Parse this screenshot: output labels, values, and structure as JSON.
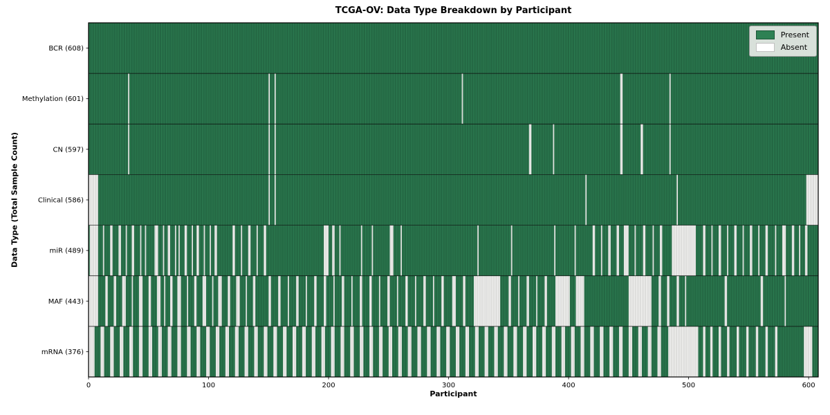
{
  "chart_data": {
    "type": "heatmap",
    "title": "TCGA-OV: Data Type Breakdown by Participant",
    "xlabel": "Participant",
    "ylabel": "Data Type (Total Sample Count)",
    "n_participants": 608,
    "x_ticks": [
      0,
      100,
      200,
      300,
      400,
      500,
      600
    ],
    "grid": "row-separators-only",
    "legend": {
      "position": "upper right",
      "present": "Present",
      "absent": "Absent"
    },
    "colors": {
      "present": "#2e8154",
      "present_alt": "#28724a",
      "present_edge": "#1c5638",
      "absent": "#fbfbfa",
      "absent_alt": "#ececea",
      "absent_edge": "#c4c4c2",
      "background": "#ffffff",
      "axis": "#000000"
    },
    "rows": [
      {
        "name": "BCR",
        "label": "BCR (608)",
        "present_count": 608,
        "absent_count": 0,
        "absent_ranges": []
      },
      {
        "name": "Methylation",
        "label": "Methylation (601)",
        "present_count": 601,
        "absent_count": 7,
        "absent_ranges": [
          [
            33,
            33
          ],
          [
            150,
            150
          ],
          [
            155,
            155
          ],
          [
            311,
            311
          ],
          [
            443,
            444
          ],
          [
            484,
            484
          ]
        ]
      },
      {
        "name": "CN",
        "label": "CN (597)",
        "present_count": 597,
        "absent_count": 11,
        "absent_ranges": [
          [
            33,
            33
          ],
          [
            150,
            150
          ],
          [
            155,
            155
          ],
          [
            367,
            368
          ],
          [
            387,
            387
          ],
          [
            443,
            444
          ],
          [
            460,
            461
          ],
          [
            484,
            484
          ]
        ]
      },
      {
        "name": "Clinical",
        "label": "Clinical (586)",
        "present_count": 586,
        "absent_count": 22,
        "absent_ranges": [
          [
            0,
            7
          ],
          [
            150,
            150
          ],
          [
            155,
            155
          ],
          [
            414,
            414
          ],
          [
            490,
            490
          ],
          [
            598,
            607
          ]
        ]
      },
      {
        "name": "miR",
        "label": "miR (489)",
        "present_count": 489,
        "absent_count": 119,
        "absent_ranges": [
          [
            1,
            7
          ],
          [
            12,
            12
          ],
          [
            18,
            19
          ],
          [
            25,
            26
          ],
          [
            31,
            31
          ],
          [
            36,
            37
          ],
          [
            43,
            43
          ],
          [
            47,
            47
          ],
          [
            55,
            57
          ],
          [
            62,
            62
          ],
          [
            66,
            67
          ],
          [
            72,
            72
          ],
          [
            75,
            75
          ],
          [
            80,
            81
          ],
          [
            86,
            86
          ],
          [
            90,
            91
          ],
          [
            96,
            96
          ],
          [
            101,
            101
          ],
          [
            105,
            106
          ],
          [
            120,
            121
          ],
          [
            127,
            127
          ],
          [
            133,
            134
          ],
          [
            140,
            140
          ],
          [
            146,
            147
          ],
          [
            196,
            199
          ],
          [
            203,
            204
          ],
          [
            209,
            209
          ],
          [
            227,
            227
          ],
          [
            236,
            236
          ],
          [
            251,
            253
          ],
          [
            260,
            260
          ],
          [
            324,
            324
          ],
          [
            352,
            352
          ],
          [
            388,
            388
          ],
          [
            405,
            405
          ],
          [
            420,
            421
          ],
          [
            427,
            427
          ],
          [
            433,
            434
          ],
          [
            440,
            441
          ],
          [
            446,
            449
          ],
          [
            455,
            455
          ],
          [
            462,
            463
          ],
          [
            470,
            470
          ],
          [
            476,
            477
          ],
          [
            486,
            505
          ],
          [
            512,
            513
          ],
          [
            519,
            519
          ],
          [
            525,
            526
          ],
          [
            532,
            532
          ],
          [
            538,
            539
          ],
          [
            545,
            545
          ],
          [
            551,
            552
          ],
          [
            558,
            558
          ],
          [
            564,
            565
          ],
          [
            572,
            572
          ],
          [
            578,
            580
          ],
          [
            586,
            587
          ],
          [
            592,
            592
          ],
          [
            597,
            598
          ]
        ]
      },
      {
        "name": "MAF",
        "label": "MAF (443)",
        "present_count": 443,
        "absent_count": 165,
        "absent_ranges": [
          [
            0,
            7
          ],
          [
            14,
            15
          ],
          [
            21,
            22
          ],
          [
            28,
            30
          ],
          [
            36,
            36
          ],
          [
            42,
            44
          ],
          [
            50,
            51
          ],
          [
            57,
            59
          ],
          [
            63,
            63
          ],
          [
            68,
            69
          ],
          [
            74,
            76
          ],
          [
            82,
            82
          ],
          [
            88,
            89
          ],
          [
            95,
            97
          ],
          [
            103,
            103
          ],
          [
            108,
            110
          ],
          [
            116,
            117
          ],
          [
            123,
            125
          ],
          [
            131,
            131
          ],
          [
            137,
            138
          ],
          [
            150,
            151
          ],
          [
            158,
            159
          ],
          [
            166,
            166
          ],
          [
            173,
            174
          ],
          [
            181,
            181
          ],
          [
            188,
            189
          ],
          [
            196,
            197
          ],
          [
            204,
            204
          ],
          [
            211,
            212
          ],
          [
            219,
            219
          ],
          [
            226,
            227
          ],
          [
            234,
            235
          ],
          [
            242,
            242
          ],
          [
            249,
            250
          ],
          [
            257,
            257
          ],
          [
            264,
            265
          ],
          [
            272,
            272
          ],
          [
            279,
            280
          ],
          [
            287,
            287
          ],
          [
            294,
            295
          ],
          [
            303,
            305
          ],
          [
            312,
            313
          ],
          [
            321,
            342
          ],
          [
            350,
            351
          ],
          [
            358,
            358
          ],
          [
            365,
            366
          ],
          [
            373,
            373
          ],
          [
            380,
            381
          ],
          [
            389,
            400
          ],
          [
            406,
            412
          ],
          [
            450,
            468
          ],
          [
            475,
            476
          ],
          [
            482,
            483
          ],
          [
            490,
            491
          ],
          [
            497,
            497
          ],
          [
            530,
            531
          ],
          [
            560,
            561
          ],
          [
            580,
            580
          ]
        ]
      },
      {
        "name": "mRNA",
        "label": "mRNA (376)",
        "present_count": 376,
        "absent_count": 232,
        "absent_ranges": [
          [
            0,
            4
          ],
          [
            10,
            12
          ],
          [
            18,
            20
          ],
          [
            26,
            28
          ],
          [
            34,
            36
          ],
          [
            42,
            44
          ],
          [
            50,
            52
          ],
          [
            58,
            60
          ],
          [
            66,
            68
          ],
          [
            74,
            76
          ],
          [
            82,
            84
          ],
          [
            90,
            92
          ],
          [
            98,
            100
          ],
          [
            106,
            108
          ],
          [
            114,
            116
          ],
          [
            122,
            124
          ],
          [
            130,
            132
          ],
          [
            138,
            140
          ],
          [
            146,
            148
          ],
          [
            154,
            156
          ],
          [
            162,
            164
          ],
          [
            170,
            172
          ],
          [
            178,
            180
          ],
          [
            186,
            188
          ],
          [
            194,
            196
          ],
          [
            202,
            204
          ],
          [
            210,
            212
          ],
          [
            218,
            220
          ],
          [
            226,
            228
          ],
          [
            234,
            236
          ],
          [
            242,
            244
          ],
          [
            250,
            252
          ],
          [
            258,
            260
          ],
          [
            266,
            268
          ],
          [
            274,
            276
          ],
          [
            282,
            284
          ],
          [
            290,
            292
          ],
          [
            298,
            300
          ],
          [
            306,
            308
          ],
          [
            314,
            316
          ],
          [
            322,
            324
          ],
          [
            330,
            332
          ],
          [
            338,
            340
          ],
          [
            346,
            348
          ],
          [
            354,
            356
          ],
          [
            362,
            364
          ],
          [
            370,
            372
          ],
          [
            378,
            380
          ],
          [
            386,
            388
          ],
          [
            394,
            396
          ],
          [
            402,
            404
          ],
          [
            410,
            412
          ],
          [
            418,
            420
          ],
          [
            426,
            428
          ],
          [
            434,
            436
          ],
          [
            442,
            444
          ],
          [
            450,
            452
          ],
          [
            458,
            460
          ],
          [
            466,
            468
          ],
          [
            474,
            476
          ],
          [
            483,
            507
          ],
          [
            512,
            513
          ],
          [
            518,
            519
          ],
          [
            525,
            526
          ],
          [
            532,
            533
          ],
          [
            540,
            541
          ],
          [
            548,
            549
          ],
          [
            556,
            557
          ],
          [
            564,
            565
          ],
          [
            572,
            573
          ],
          [
            596,
            602
          ]
        ]
      }
    ]
  }
}
